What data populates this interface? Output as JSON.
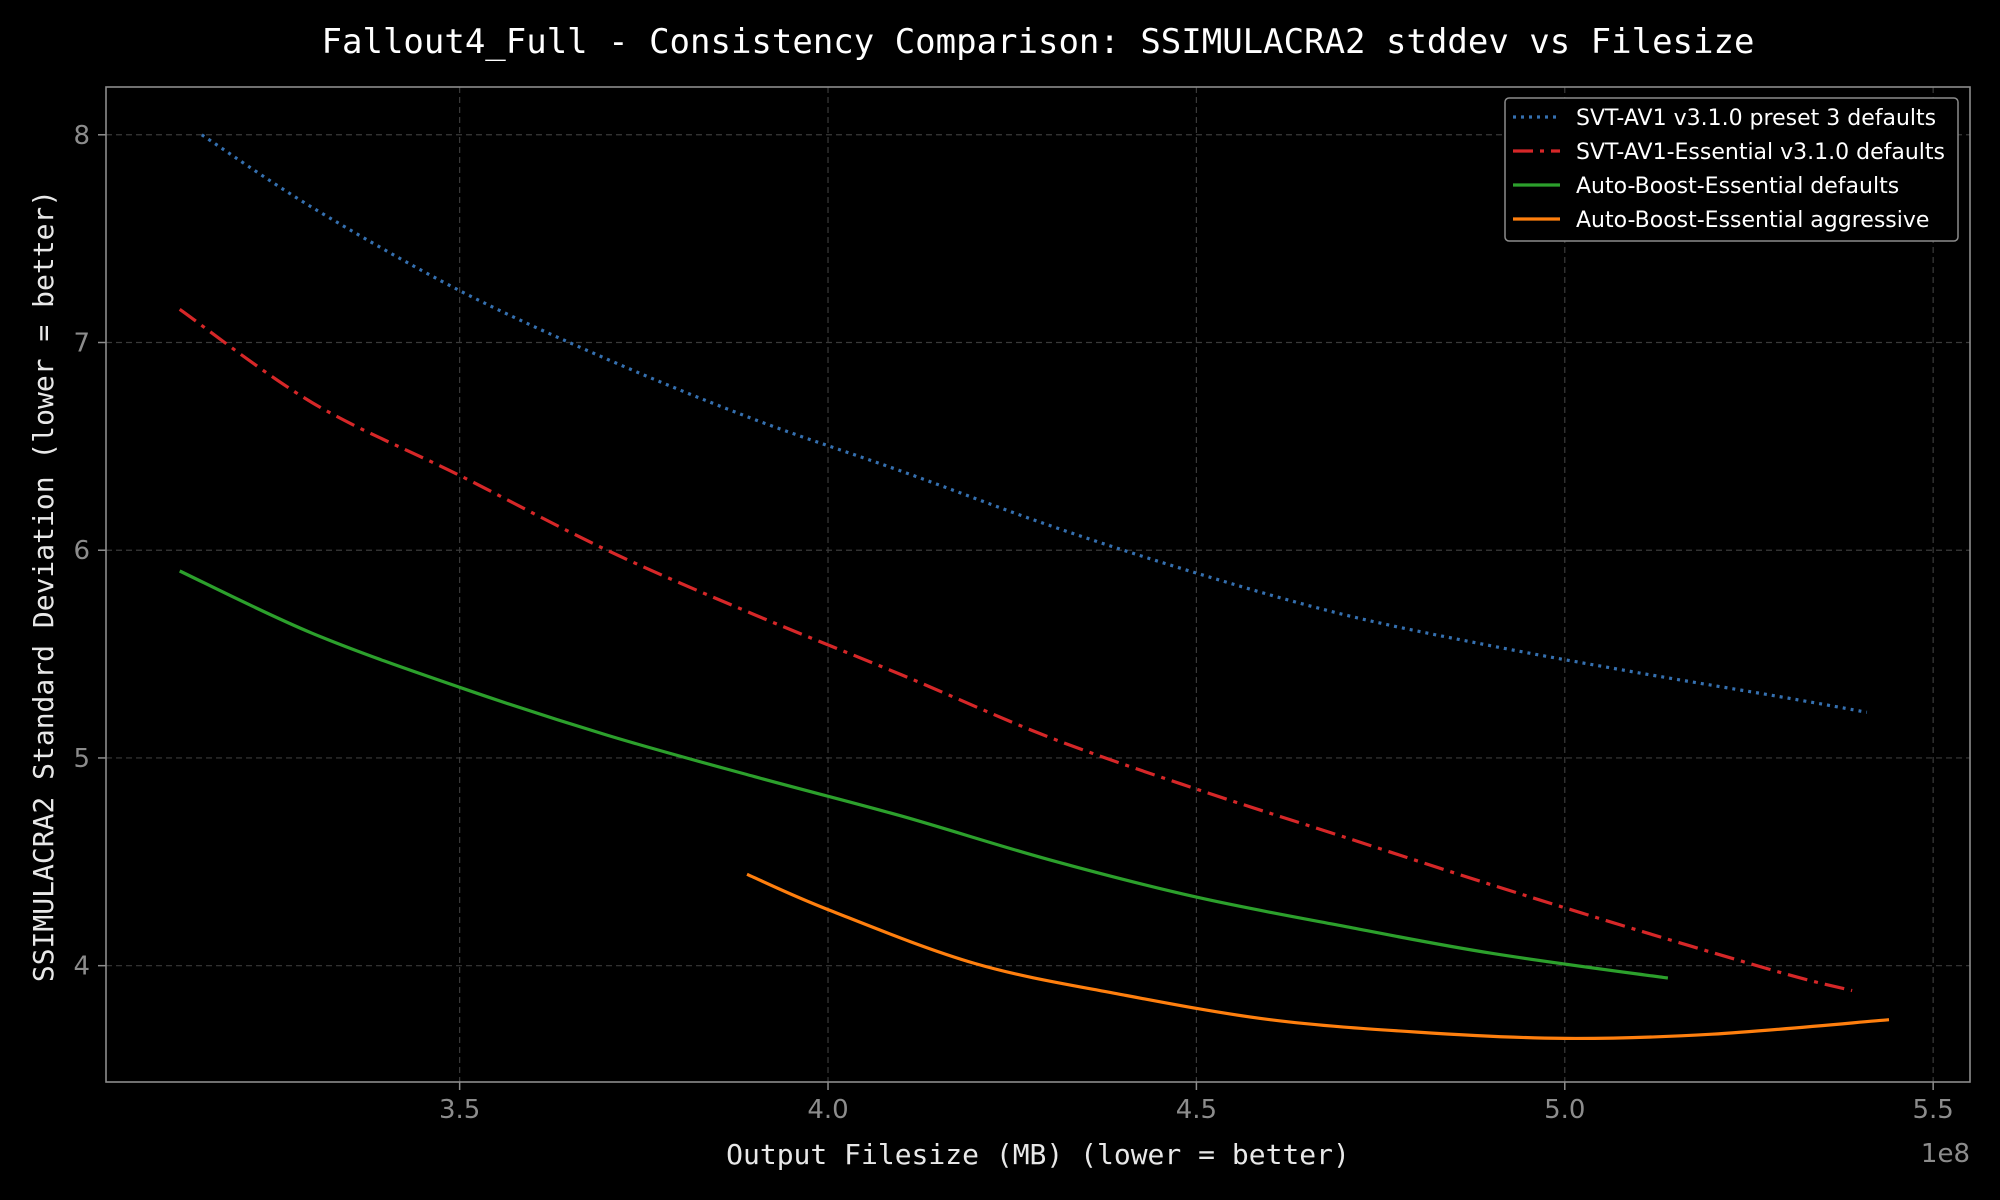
{
  "chart_data": {
    "type": "line",
    "title": "Fallout4_Full - Consistency Comparison: SSIMULACRA2 stddev vs Filesize",
    "xlabel": "Output Filesize (MB) (lower = better)",
    "ylabel": "SSIMULACRA2 Standard Deviation (lower = better)",
    "x_offset_label": "1e8",
    "x_scale_multiplier": 100000000,
    "xlim": [
      3.02,
      5.55
    ],
    "ylim": [
      3.44,
      8.23
    ],
    "xticks": [
      3.5,
      4.0,
      4.5,
      5.0,
      5.5
    ],
    "xtick_labels": [
      "3.5",
      "4.0",
      "4.5",
      "5.0",
      "5.5"
    ],
    "yticks": [
      4,
      5,
      6,
      7,
      8
    ],
    "ytick_labels": [
      "4",
      "5",
      "6",
      "7",
      "8"
    ],
    "grid": true,
    "legend_position": "top-right",
    "series": [
      {
        "name": "SVT-AV1 v3.1.0 preset 3 defaults",
        "color": "#3570b0",
        "style": "dotted",
        "x": [
          3.15,
          3.3,
          3.5,
          3.7,
          3.9,
          4.1,
          4.3,
          4.5,
          4.7,
          4.9,
          5.1,
          5.3,
          5.41
        ],
        "y": [
          8.0,
          7.65,
          7.25,
          6.92,
          6.63,
          6.38,
          6.12,
          5.89,
          5.69,
          5.54,
          5.41,
          5.29,
          5.22
        ]
      },
      {
        "name": "SVT-AV1-Essential v3.1.0 defaults",
        "color": "#d62728",
        "style": "dashdot",
        "x": [
          3.12,
          3.3,
          3.5,
          3.7,
          3.9,
          4.1,
          4.3,
          4.5,
          4.7,
          4.9,
          5.1,
          5.3,
          5.39
        ],
        "y": [
          7.16,
          6.71,
          6.36,
          6.0,
          5.69,
          5.4,
          5.1,
          4.85,
          4.62,
          4.39,
          4.17,
          3.96,
          3.88
        ]
      },
      {
        "name": "Auto-Boost-Essential defaults",
        "color": "#2ca02c",
        "style": "solid",
        "x": [
          3.12,
          3.3,
          3.5,
          3.7,
          3.9,
          4.1,
          4.3,
          4.5,
          4.7,
          4.9,
          5.14
        ],
        "y": [
          5.9,
          5.6,
          5.34,
          5.11,
          4.91,
          4.72,
          4.51,
          4.33,
          4.19,
          4.06,
          3.94
        ]
      },
      {
        "name": "Auto-Boost-Essential aggressive",
        "color": "#ff7f0e",
        "style": "solid",
        "x": [
          3.89,
          4.0,
          4.2,
          4.4,
          4.6,
          4.8,
          5.0,
          5.2,
          5.44
        ],
        "y": [
          4.44,
          4.27,
          4.01,
          3.86,
          3.74,
          3.68,
          3.65,
          3.67,
          3.74
        ]
      }
    ]
  }
}
